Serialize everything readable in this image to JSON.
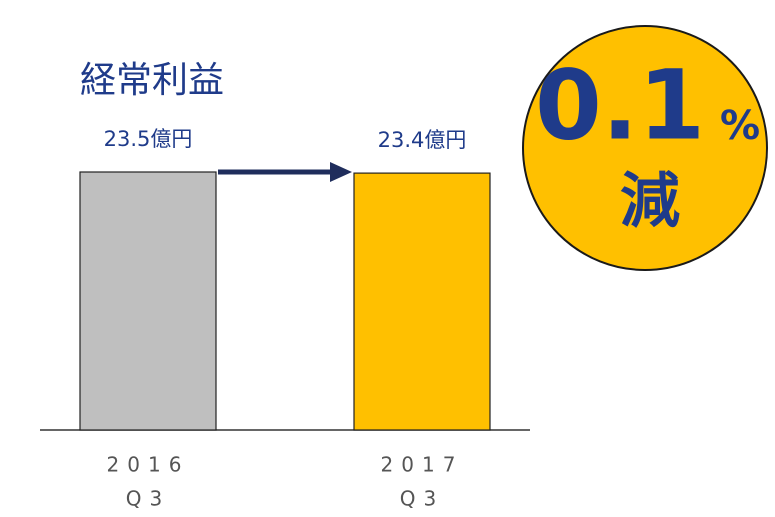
{
  "chart_data": {
    "type": "bar",
    "title": "経常利益",
    "categories": [
      [
        "2016",
        "Q3"
      ],
      [
        "2017",
        "Q3"
      ]
    ],
    "values": [
      23.5,
      23.4
    ],
    "value_labels": [
      "23.5億円",
      "23.4億円"
    ],
    "colors": [
      "#bfbfbf",
      "#ffc000"
    ],
    "badge": {
      "value": "0.1",
      "unit": "%",
      "text": "減"
    }
  }
}
